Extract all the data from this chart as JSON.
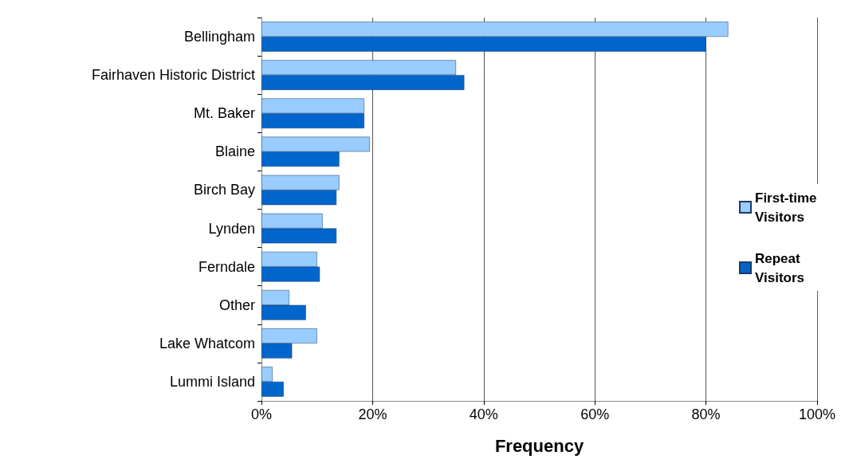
{
  "chart_data": {
    "type": "bar",
    "orientation": "horizontal",
    "xlabel": "Frequency",
    "categories": [
      "Bellingham",
      "Fairhaven Historic District",
      "Mt. Baker",
      "Blaine",
      "Birch Bay",
      "Lynden",
      "Ferndale",
      "Other",
      "Lake Whatcom",
      "Lummi Island"
    ],
    "series": [
      {
        "name": "First-time Visitors",
        "color": "#99ccff",
        "values": [
          84,
          35,
          18.5,
          19.5,
          14,
          11,
          10,
          5,
          10,
          2
        ]
      },
      {
        "name": "Repeat Visitors",
        "color": "#0066cc",
        "values": [
          80,
          36.5,
          18.5,
          14,
          13.5,
          13.5,
          10.5,
          8,
          5.5,
          4
        ]
      }
    ],
    "xlim": [
      0,
      100
    ],
    "xticks": [
      {
        "value": 0,
        "label": "0%"
      },
      {
        "value": 20,
        "label": "20%"
      },
      {
        "value": 40,
        "label": "40%"
      },
      {
        "value": 60,
        "label": "60%"
      },
      {
        "value": 80,
        "label": "80%"
      },
      {
        "value": 100,
        "label": "100%"
      }
    ],
    "grid": "x",
    "legend": "right"
  }
}
